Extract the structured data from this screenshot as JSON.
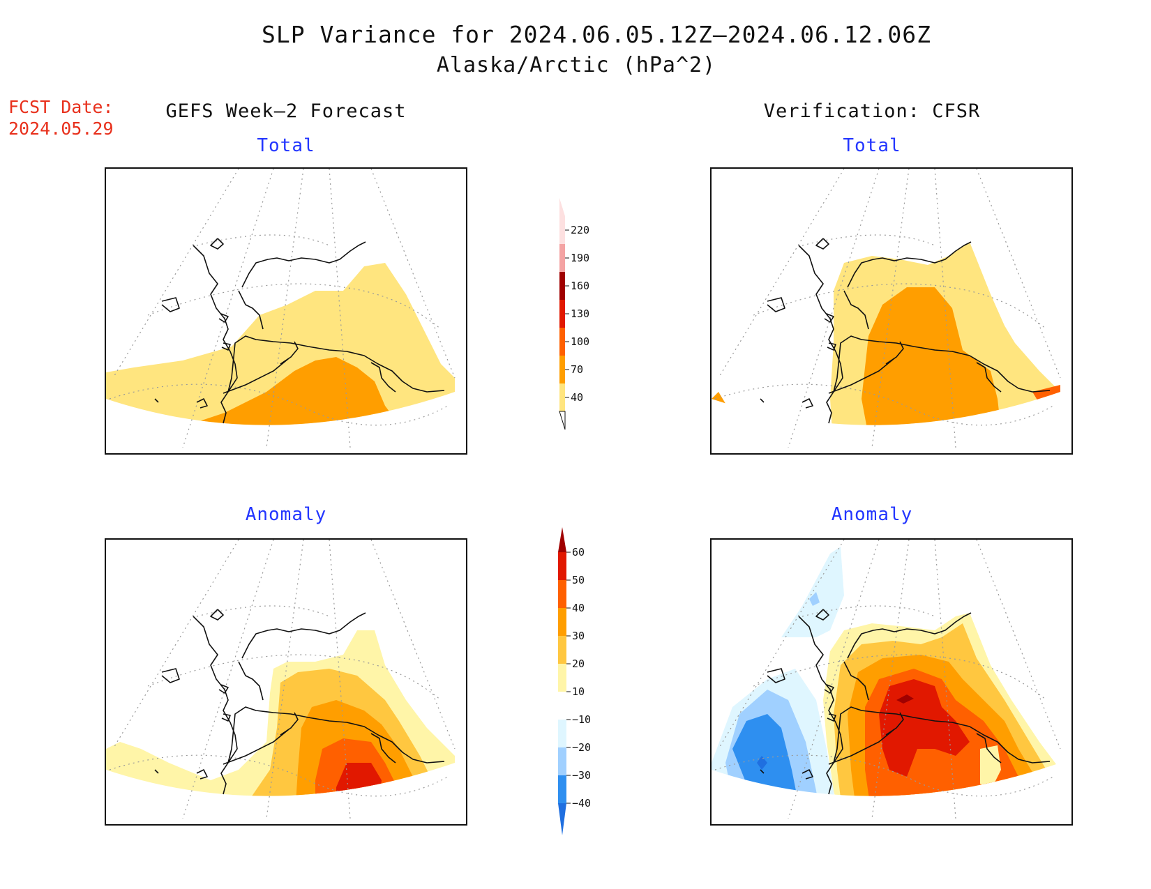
{
  "title": {
    "line1": "SLP Variance for 2024.06.05.12Z–2024.06.12.06Z",
    "line2": "Alaska/Arctic (hPa^2)"
  },
  "forecast_date": {
    "label": "FCST Date:",
    "value": "2024.05.29"
  },
  "columns": {
    "left": "GEFS Week–2 Forecast",
    "right": "Verification: CFSR"
  },
  "panels": {
    "top_left": "Total",
    "top_right": "Total",
    "bottom_left": "Anomaly",
    "bottom_right": "Anomaly"
  },
  "colorbars": {
    "total": {
      "levels": [
        "40",
        "70",
        "100",
        "130",
        "160",
        "190",
        "220"
      ],
      "colors": [
        "#ffe57f",
        "#ff9e00",
        "#ff6000",
        "#e11800",
        "#a00000",
        "#f4a3a3",
        "#fde0e0"
      ]
    },
    "anomaly": {
      "levels": [
        "−40",
        "−30",
        "−20",
        "−10",
        "10",
        "20",
        "30",
        "40",
        "50",
        "60"
      ],
      "colors": [
        "#1f6fe0",
        "#2e8ff0",
        "#a0d0ff",
        "#dff6ff",
        "#ffffff",
        "#fff5a8",
        "#ffc740",
        "#ff9e00",
        "#ff6000",
        "#e11800",
        "#a00000"
      ]
    }
  },
  "palette": {
    "yellow": "#ffe57f",
    "orange": "#ff9e00",
    "dark_orange": "#ff6000",
    "red": "#e11800",
    "dark_red": "#a00000",
    "pale_yellow": "#fff5a8",
    "light_orange": "#ffc740",
    "light_blue": "#dff6ff",
    "sky_blue": "#a0d0ff",
    "blue": "#2e8ff0",
    "deep_blue": "#1f6fe0"
  }
}
